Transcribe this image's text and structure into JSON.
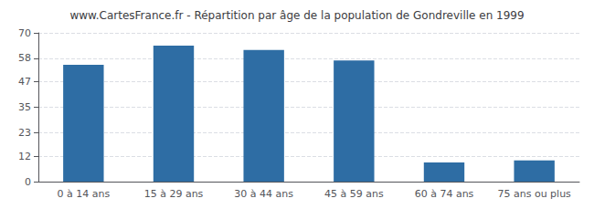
{
  "chart_data": {
    "type": "bar",
    "title": "www.CartesFrance.fr - Répartition par âge de la population de Gondreville en 1999",
    "categories": [
      "0 à 14 ans",
      "15 à 29 ans",
      "30 à 44 ans",
      "45 à 59 ans",
      "60 à 74 ans",
      "75 ans ou plus"
    ],
    "values": [
      55,
      64,
      62,
      57,
      9,
      10
    ],
    "color": "#2e6da4",
    "ylim": [
      0,
      70
    ],
    "yticks": [
      0,
      12,
      23,
      35,
      47,
      58,
      70
    ],
    "grid": true
  }
}
